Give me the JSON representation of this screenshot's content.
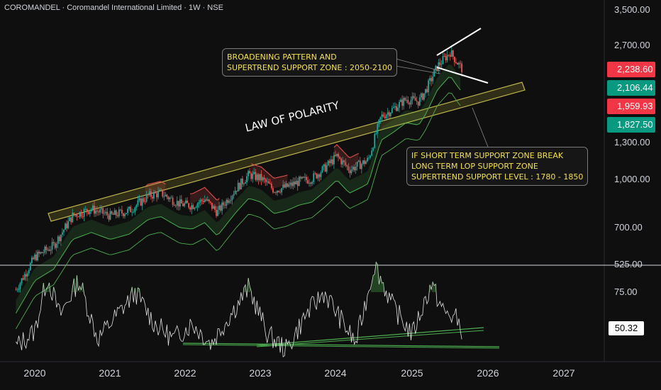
{
  "header": {
    "title": "COROMANDEL · Coromandel International Limited · 1W · NSE"
  },
  "chart_data": [
    {
      "type": "candlestick",
      "title": "COROMANDEL · Coromandel International Limited · 1W · NSE",
      "price_axis": {
        "scale": "log",
        "ticks": [
          "3,500.00",
          "2,700.00",
          "1,300.00",
          "1,000.00",
          "700.00",
          "525.00"
        ]
      },
      "time_axis": {
        "ticks": [
          "2020",
          "2021",
          "2022",
          "2023",
          "2024",
          "2025",
          "2026",
          "2027"
        ]
      },
      "price_tags": [
        {
          "value": "2,238.60",
          "color": "#f23645"
        },
        {
          "value": "2,106.44",
          "color": "#089981"
        },
        {
          "value": "1,959.93",
          "color": "#f23645"
        },
        {
          "value": "1,827.50",
          "color": "#089981"
        }
      ],
      "close_path": [
        [
          "2019-10",
          440
        ],
        [
          "2020-01",
          560
        ],
        [
          "2020-04",
          610
        ],
        [
          "2020-07",
          760
        ],
        [
          "2020-10",
          800
        ],
        [
          "2021-01",
          760
        ],
        [
          "2021-04",
          790
        ],
        [
          "2021-07",
          880
        ],
        [
          "2021-09",
          900
        ],
        [
          "2021-12",
          830
        ],
        [
          "2022-02",
          820
        ],
        [
          "2022-04",
          860
        ],
        [
          "2022-06",
          780
        ],
        [
          "2022-09",
          930
        ],
        [
          "2022-11",
          1030
        ],
        [
          "2023-01",
          1000
        ],
        [
          "2023-03",
          920
        ],
        [
          "2023-05",
          940
        ],
        [
          "2023-07",
          980
        ],
        [
          "2023-09",
          1000
        ],
        [
          "2023-11",
          1080
        ],
        [
          "2024-01",
          1180
        ],
        [
          "2024-03",
          1070
        ],
        [
          "2024-05",
          1120
        ],
        [
          "2024-06",
          1150
        ],
        [
          "2024-08",
          1580
        ],
        [
          "2024-10",
          1680
        ],
        [
          "2024-12",
          1800
        ],
        [
          "2025-02",
          1770
        ],
        [
          "2025-03",
          1900
        ],
        [
          "2025-05",
          2300
        ],
        [
          "2025-07",
          2550
        ],
        [
          "2025-08",
          2380
        ],
        [
          "2025-09",
          2238.6
        ]
      ],
      "annotations": {
        "broadening": [
          "BROADENING PATTERN AND",
          "SUPERTREND SUPPORT ZONE : 2050-2100"
        ],
        "support_break": [
          "IF SHORT TERM SUPPORT ZONE BREAK",
          "LONG TERM LOP SUPPORT ZONE",
          "SUPERTREND SUPPORT LEVEL : 1780 - 1850"
        ],
        "trendline_label": "LAW OF POLARITY"
      }
    },
    {
      "type": "line",
      "name": "RSI",
      "ticks": [
        "75.00"
      ],
      "last_value": "50.32",
      "series_path": [
        [
          "2019-10",
          40
        ],
        [
          "2020-01",
          50
        ],
        [
          "2020-03",
          85
        ],
        [
          "2020-05",
          60
        ],
        [
          "2020-08",
          83
        ],
        [
          "2020-11",
          45
        ],
        [
          "2021-02",
          60
        ],
        [
          "2021-05",
          75
        ],
        [
          "2021-08",
          55
        ],
        [
          "2021-11",
          45
        ],
        [
          "2022-02",
          55
        ],
        [
          "2022-05",
          42
        ],
        [
          "2022-08",
          60
        ],
        [
          "2022-11",
          78
        ],
        [
          "2023-02",
          48
        ],
        [
          "2023-05",
          38
        ],
        [
          "2023-08",
          60
        ],
        [
          "2023-11",
          75
        ],
        [
          "2024-02",
          55
        ],
        [
          "2024-04",
          42
        ],
        [
          "2024-07",
          93
        ],
        [
          "2024-10",
          65
        ],
        [
          "2025-01",
          48
        ],
        [
          "2025-04",
          80
        ],
        [
          "2025-06",
          62
        ],
        [
          "2025-08",
          58
        ],
        [
          "2025-09",
          50.32
        ]
      ]
    }
  ]
}
